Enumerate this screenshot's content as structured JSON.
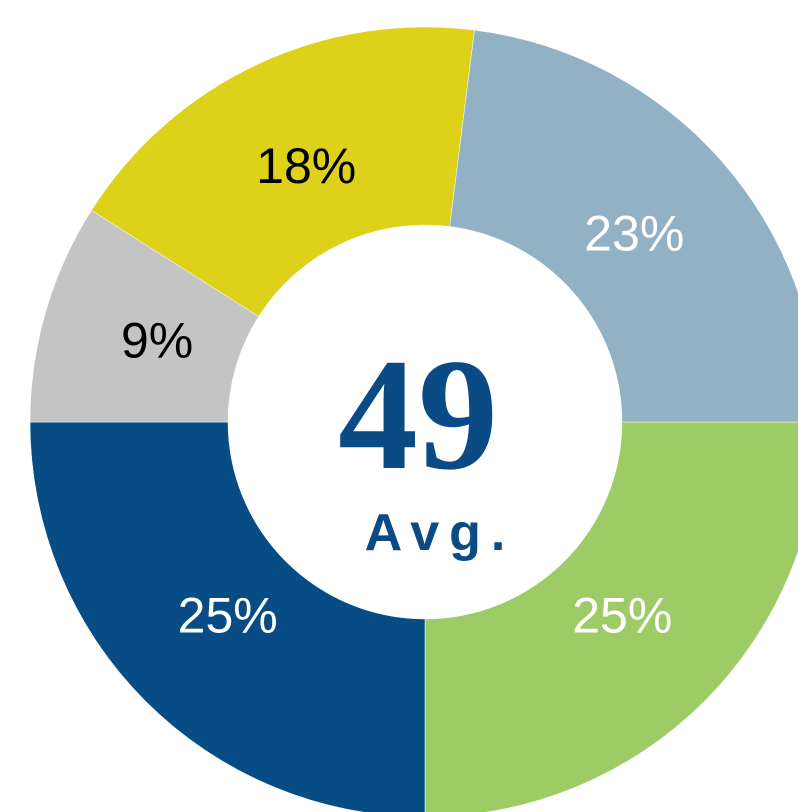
{
  "chart_data": {
    "type": "donut",
    "values": [
      25,
      25,
      9,
      18,
      23
    ],
    "value_labels": [
      "25%",
      "25%",
      "9%",
      "18%",
      "23%"
    ],
    "colors": [
      "#9dcb66",
      "#074c85",
      "#c4c4c4",
      "#ddd11a",
      "#92b1c4"
    ],
    "label_colors": [
      "#ffffff",
      "#ffffff",
      "#000000",
      "#000000",
      "#ffffff"
    ],
    "center_value": 49,
    "center_label": "Avg."
  }
}
